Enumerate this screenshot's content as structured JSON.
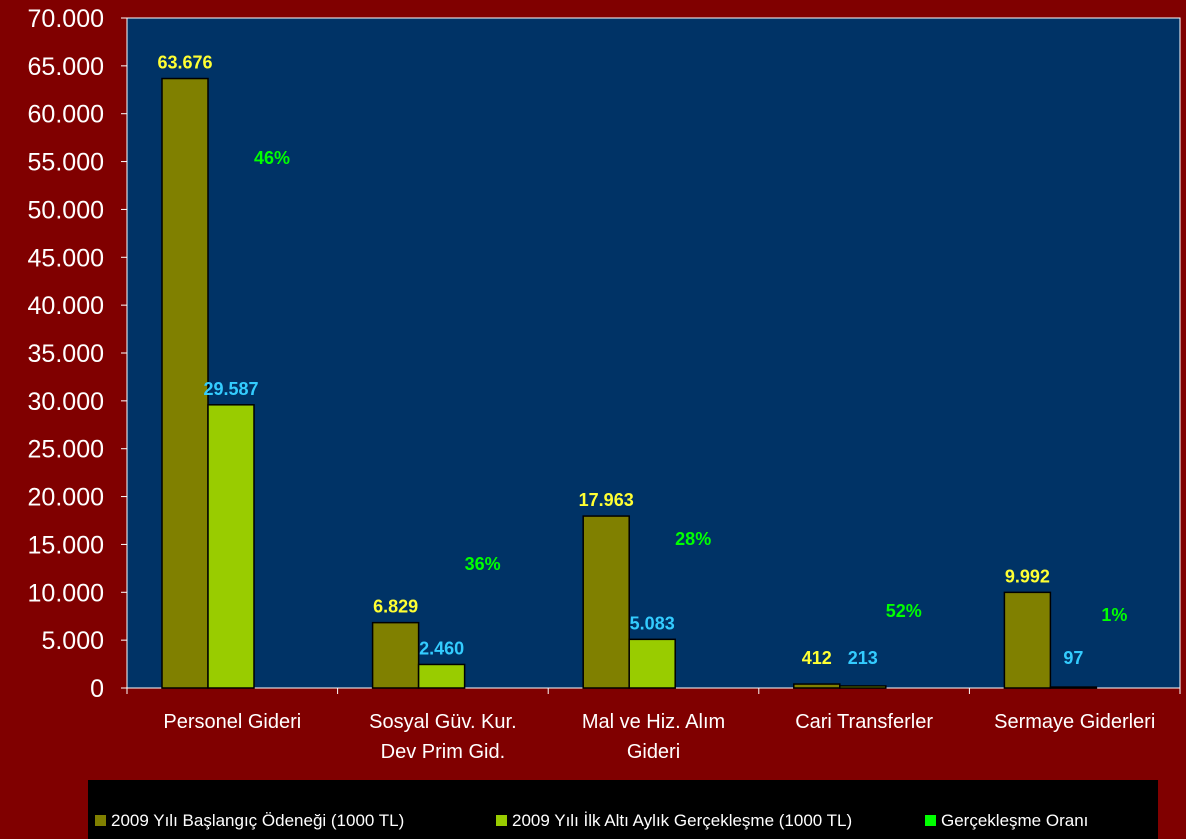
{
  "chart_data": {
    "type": "bar",
    "categories": [
      [
        "Personel Gideri"
      ],
      [
        "Sosyal Güv. Kur.",
        "Dev Prim Gid."
      ],
      [
        "Mal ve Hiz. Alım",
        "Gideri"
      ],
      [
        "Cari Transferler"
      ],
      [
        "Sermaye  Giderleri"
      ]
    ],
    "ylim": [
      0,
      70000
    ],
    "ytick_step": 5000,
    "ytick_labels": [
      "0",
      "5.000",
      "10.000",
      "15.000",
      "20.000",
      "25.000",
      "30.000",
      "35.000",
      "40.000",
      "45.000",
      "50.000",
      "55.000",
      "60.000",
      "65.000",
      "70.000"
    ],
    "grid": false,
    "legend_position": "bottom",
    "series": [
      {
        "name": "2009 Yılı Başlangıç Ödeneği (1000 TL)",
        "values": [
          63676,
          6829,
          17963,
          412,
          9992
        ],
        "labels": [
          "63.676",
          "6.829",
          "17.963",
          "412",
          "9.992"
        ],
        "color": "#808000",
        "label_color": "#ffff33"
      },
      {
        "name": "2009 Yılı İlk Altı Aylık Gerçekleşme (1000 TL)",
        "values": [
          29587,
          2460,
          5083,
          213,
          97
        ],
        "labels": [
          "29.587",
          "2.460",
          "5.083",
          "213",
          "97"
        ],
        "color": "#99cc00",
        "label_color": "#33ccff"
      },
      {
        "name": "Gerçekleşme Oranı",
        "values": [
          46,
          36,
          28,
          52,
          1
        ],
        "labels": [
          "46%",
          "36%",
          "28%",
          "52%",
          "1%"
        ],
        "color": "#00ff00",
        "label_color": "#00ff00"
      }
    ],
    "colors": {
      "background": "#800000",
      "plot_background": "#003366",
      "axis": "#ffffff",
      "text": "#ffffff",
      "legend_background": "#000000"
    }
  }
}
